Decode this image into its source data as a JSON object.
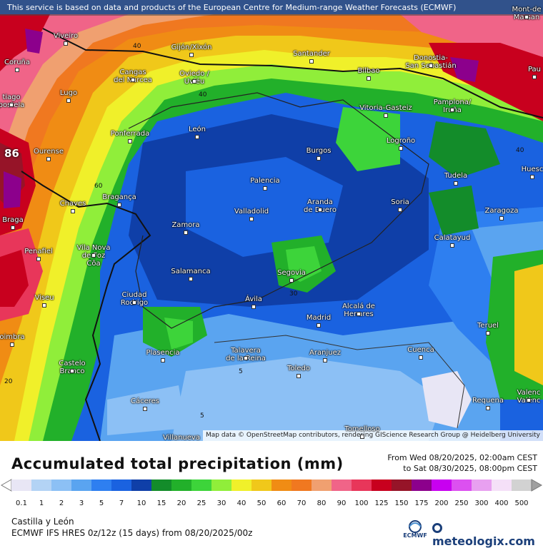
{
  "disclaimer": "This service is based on data and products of the European Centre for Medium-range Weather Forecasts (ECMWF)",
  "attribution": "Map data © OpenStreetMap contributors, rendering GIScience Research Group @ Heidelberg University",
  "peak_value": "86",
  "title": "Accumulated total precipitation (mm)",
  "period_from": "From Wed 08/20/2025, 02:00am CEST",
  "period_to": "to Sat 08/30/2025, 08:00pm CEST",
  "region": "Castilla y León",
  "model": "ECMWF IFS HRES 0z/12z (15 days) from 08/20/2025/00z",
  "brand": "meteologix.com",
  "ecmwf_logo_text": "ECMWF",
  "legend": {
    "labels": [
      "0.1",
      "1",
      "2",
      "3",
      "5",
      "7",
      "10",
      "15",
      "20",
      "25",
      "30",
      "40",
      "50",
      "60",
      "70",
      "80",
      "90",
      "100",
      "125",
      "150",
      "175",
      "200",
      "250",
      "300",
      "400",
      "500"
    ],
    "colors": [
      "#e8e6f5",
      "#b3d3f5",
      "#8cc0f5",
      "#5aa4f0",
      "#2e7ff0",
      "#1a62e0",
      "#0f3fa8",
      "#138c2a",
      "#22b02a",
      "#3dd43a",
      "#90ee3a",
      "#f0f02a",
      "#f0c81a",
      "#f08c14",
      "#f07820",
      "#f0a070",
      "#f06488",
      "#e8365a",
      "#c8001e",
      "#961428",
      "#8c008c",
      "#c800f0",
      "#dc50f0",
      "#e8a0f0",
      "#f5e0f8",
      "#d2d2d2"
    ]
  },
  "contour_labels": [
    {
      "text": "40"
    },
    {
      "text": "40"
    },
    {
      "text": "60"
    },
    {
      "text": "40"
    },
    {
      "text": "30"
    },
    {
      "text": "5"
    },
    {
      "text": "5"
    },
    {
      "text": "20"
    }
  ],
  "cities": [
    {
      "name": "Viveiro"
    },
    {
      "name": "Coruña"
    },
    {
      "name": "Gijón/Xixón"
    },
    {
      "name": "Santander"
    },
    {
      "name": "Donostia-\nSan Sebastián"
    },
    {
      "name": "Bilbao"
    },
    {
      "name": "Cangas\ndel Narcea"
    },
    {
      "name": "Oviedo /\nUvíéu"
    },
    {
      "name": "Lugo"
    },
    {
      "name": "tiago\npostela"
    },
    {
      "name": "Vitoria-Gasteiz"
    },
    {
      "name": "Pamplona/\nIruña"
    },
    {
      "name": "Ponferrada"
    },
    {
      "name": "León"
    },
    {
      "name": "Burgos"
    },
    {
      "name": "Logroño"
    },
    {
      "name": "Ourense"
    },
    {
      "name": "Tudela"
    },
    {
      "name": "Huesc"
    },
    {
      "name": "Palencia"
    },
    {
      "name": "Chaves"
    },
    {
      "name": "Bragança"
    },
    {
      "name": "Aranda\nde Duero"
    },
    {
      "name": "Soria"
    },
    {
      "name": "Zaragoza"
    },
    {
      "name": "Valladolid"
    },
    {
      "name": "Braga"
    },
    {
      "name": "Zamora"
    },
    {
      "name": "Calatayud"
    },
    {
      "name": "Vila Nova\nde Foz\nCôa"
    },
    {
      "name": "Penafiel"
    },
    {
      "name": "Salamanca"
    },
    {
      "name": "Segovia"
    },
    {
      "name": "Viseu"
    },
    {
      "name": "Ciudad\nRodrigo"
    },
    {
      "name": "Ávila"
    },
    {
      "name": "Alcalá de\nHenares"
    },
    {
      "name": "Madrid"
    },
    {
      "name": "Teruel"
    },
    {
      "name": "oimbra"
    },
    {
      "name": "Plasencia"
    },
    {
      "name": "Talavera\nde la Reina"
    },
    {
      "name": "Aranjuez"
    },
    {
      "name": "Cuenca"
    },
    {
      "name": "Castelo\nBranco"
    },
    {
      "name": "Toledo"
    },
    {
      "name": "Cáceres"
    },
    {
      "name": "Requena"
    },
    {
      "name": "Valenc\nValènc"
    },
    {
      "name": "Tomelloso"
    },
    {
      "name": "Villanueva"
    },
    {
      "name": "Mont-de\nMarsan"
    },
    {
      "name": "Pau"
    }
  ]
}
